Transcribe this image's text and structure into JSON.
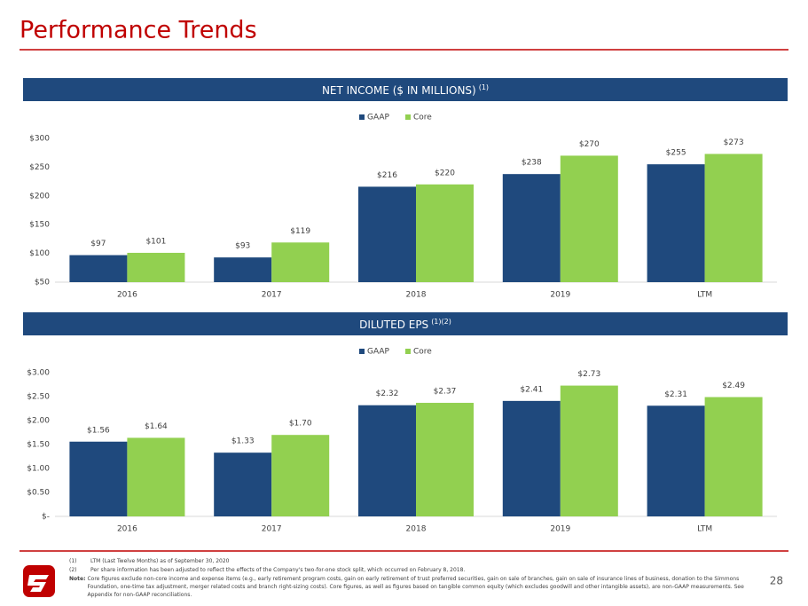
{
  "title": "Performance Trends",
  "page_number": "28",
  "footnotes": [
    {
      "marker": "(1)",
      "text": "LTM (Last Twelve Months) as of September 30, 2020"
    },
    {
      "marker": "(2)",
      "text": "Per share information has been adjusted to reflect the effects of the Company's two-for-one stock split, which occurred on February 8, 2018."
    },
    {
      "marker": "Note:",
      "text": "Core figures exclude non-core income and expense items (e.g., early retirement program costs, gain on early retirement of trust preferred securities, gain on sale of branches, gain on sale of insurance lines of business, donation to the Simmons Foundation, one-time tax adjustment, merger related costs and branch right-sizing costs). Core figures, as well as figures based on tangible common equity (which excludes goodwill and other intangible assets), are non-GAAP measurements. See Appendix for non-GAAP reconciliations."
    }
  ],
  "chart_data": [
    {
      "type": "bar",
      "title": "NET INCOME ($ IN MILLIONS)",
      "title_superscript": "(1)",
      "categories": [
        "2016",
        "2017",
        "2018",
        "2019",
        "LTM"
      ],
      "series": [
        {
          "name": "GAAP",
          "color": "#1f497d",
          "values": [
            97,
            93,
            216,
            238,
            255
          ],
          "value_labels": [
            "$97",
            "$93",
            "$216",
            "$238",
            "$255"
          ]
        },
        {
          "name": "Core",
          "color": "#92d050",
          "values": [
            101,
            119,
            220,
            270,
            273
          ],
          "value_labels": [
            "$101",
            "$119",
            "$220",
            "$270",
            "$273"
          ]
        }
      ],
      "ylim": [
        50,
        300
      ],
      "yticks": [
        {
          "value": 50,
          "label": "$50"
        },
        {
          "value": 100,
          "label": "$100"
        },
        {
          "value": 150,
          "label": "$150"
        },
        {
          "value": 200,
          "label": "$200"
        },
        {
          "value": 250,
          "label": "$250"
        },
        {
          "value": 300,
          "label": "$300"
        }
      ],
      "grid": false,
      "legend": "top"
    },
    {
      "type": "bar",
      "title": "DILUTED EPS",
      "title_superscript": "(1)(2)",
      "categories": [
        "2016",
        "2017",
        "2018",
        "2019",
        "LTM"
      ],
      "series": [
        {
          "name": "GAAP",
          "color": "#1f497d",
          "values": [
            1.56,
            1.33,
            2.32,
            2.41,
            2.31
          ],
          "value_labels": [
            "$1.56",
            "$1.33",
            "$2.32",
            "$2.41",
            "$2.31"
          ]
        },
        {
          "name": "Core",
          "color": "#92d050",
          "values": [
            1.64,
            1.7,
            2.37,
            2.73,
            2.49
          ],
          "value_labels": [
            "$1.64",
            "$1.70",
            "$2.37",
            "$2.73",
            "$2.49"
          ]
        }
      ],
      "ylim": [
        0,
        3
      ],
      "yticks": [
        {
          "value": 0,
          "label": "$-"
        },
        {
          "value": 0.5,
          "label": "$0.50"
        },
        {
          "value": 1,
          "label": "$1.00"
        },
        {
          "value": 1.5,
          "label": "$1.50"
        },
        {
          "value": 2,
          "label": "$2.00"
        },
        {
          "value": 2.5,
          "label": "$2.50"
        },
        {
          "value": 3,
          "label": "$3.00"
        }
      ],
      "grid": false,
      "legend": "top"
    }
  ]
}
